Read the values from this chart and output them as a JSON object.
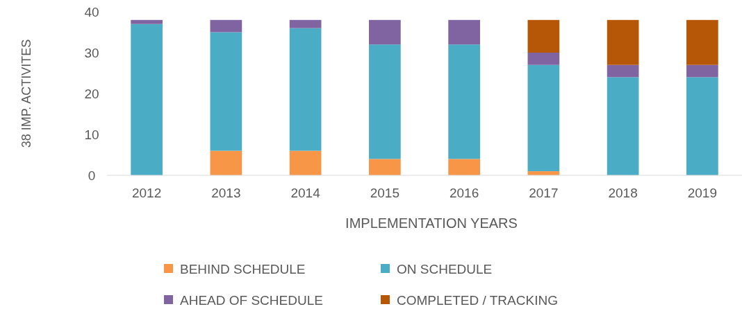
{
  "chart_data": {
    "type": "bar",
    "stacked": true,
    "xlabel": "IMPLEMENTATION YEARS",
    "ylabel": "38 IMP. ACTIVITES",
    "categories": [
      "2012",
      "2013",
      "2014",
      "2015",
      "2016",
      "2017",
      "2018",
      "2019"
    ],
    "series": [
      {
        "name": "BEHIND SCHEDULE",
        "color": "#f79646",
        "values": [
          0,
          6,
          6,
          4,
          4,
          1,
          0,
          0
        ]
      },
      {
        "name": "ON SCHEDULE",
        "color": "#4bacc6",
        "values": [
          37,
          29,
          30,
          28,
          28,
          26,
          24,
          24
        ]
      },
      {
        "name": "AHEAD OF SCHEDULE",
        "color": "#8064a2",
        "values": [
          1,
          3,
          2,
          6,
          6,
          3,
          3,
          3
        ]
      },
      {
        "name": "COMPLETED / TRACKING",
        "color": "#b65708",
        "values": [
          0,
          0,
          0,
          0,
          0,
          8,
          11,
          11
        ]
      }
    ],
    "ylim": [
      0,
      40
    ],
    "yticks": [
      0,
      10,
      20,
      30,
      40
    ],
    "grid": false,
    "legend": "bottom"
  }
}
